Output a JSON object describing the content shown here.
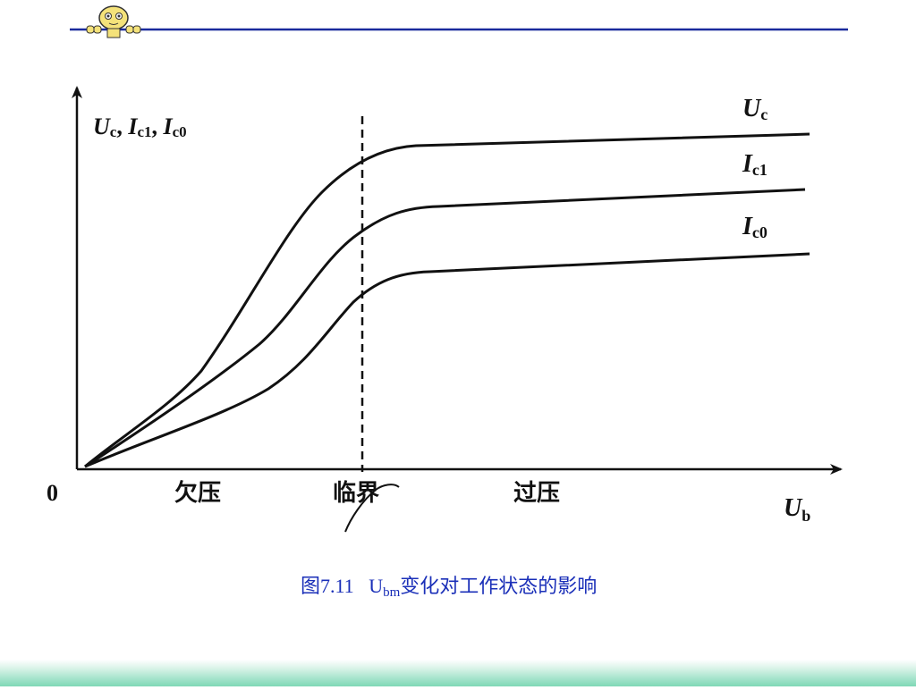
{
  "header": {
    "mascot_icon": "peeking-face-icon",
    "rule_color": "#1a2a9c"
  },
  "diagram": {
    "y_axis_label": {
      "sym1": "U",
      "sub1": "c",
      "sym2": "I",
      "sub2": "c1",
      "sym3": "I",
      "sub3": "c0",
      "sep": ", "
    },
    "x_axis_label": {
      "sym": "U",
      "sub": "b"
    },
    "origin_label": "0",
    "region_labels": {
      "under_voltage": "欠压",
      "critical": "临界",
      "over_voltage": "过压"
    },
    "curves": [
      {
        "key": "uc",
        "sym": "U",
        "sub": "c"
      },
      {
        "key": "ic1",
        "sym": "I",
        "sub": "c1"
      },
      {
        "key": "ic0",
        "sym": "I",
        "sub": "c0"
      }
    ]
  },
  "caption": {
    "prefix": "图7.11",
    "var": "U",
    "var_sub": "bm",
    "suffix": "变化对工作状态的影响"
  },
  "colors": {
    "caption": "#1a2fb8",
    "ink": "#111111",
    "bottom_band": "#7fd8b6"
  }
}
